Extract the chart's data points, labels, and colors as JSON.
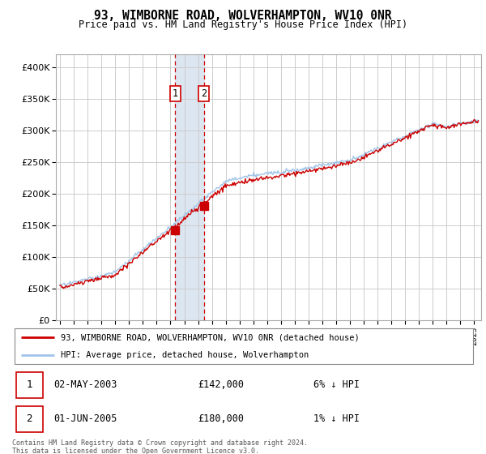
{
  "title": "93, WIMBORNE ROAD, WOLVERHAMPTON, WV10 0NR",
  "subtitle": "Price paid vs. HM Land Registry's House Price Index (HPI)",
  "ylim": [
    0,
    420000
  ],
  "xlim_start": 1994.7,
  "xlim_end": 2025.5,
  "transaction1": {
    "date_x": 2003.33,
    "price": 142000,
    "label": "1",
    "date_str": "02-MAY-2003",
    "hpi_pct": "6% ↓ HPI"
  },
  "transaction2": {
    "date_x": 2005.42,
    "price": 180000,
    "label": "2",
    "date_str": "01-JUN-2005",
    "hpi_pct": "1% ↓ HPI"
  },
  "legend_line1": "93, WIMBORNE ROAD, WOLVERHAMPTON, WV10 0NR (detached house)",
  "legend_line2": "HPI: Average price, detached house, Wolverhampton",
  "footer": "Contains HM Land Registry data © Crown copyright and database right 2024.\nThis data is licensed under the Open Government Licence v3.0.",
  "hpi_color": "#a0c4e8",
  "price_color": "#cc0000",
  "shade_color": "#dce6f1",
  "marker_color": "#cc0000",
  "box_color": "#cc0000",
  "background_color": "#ffffff",
  "grid_color": "#cccccc"
}
